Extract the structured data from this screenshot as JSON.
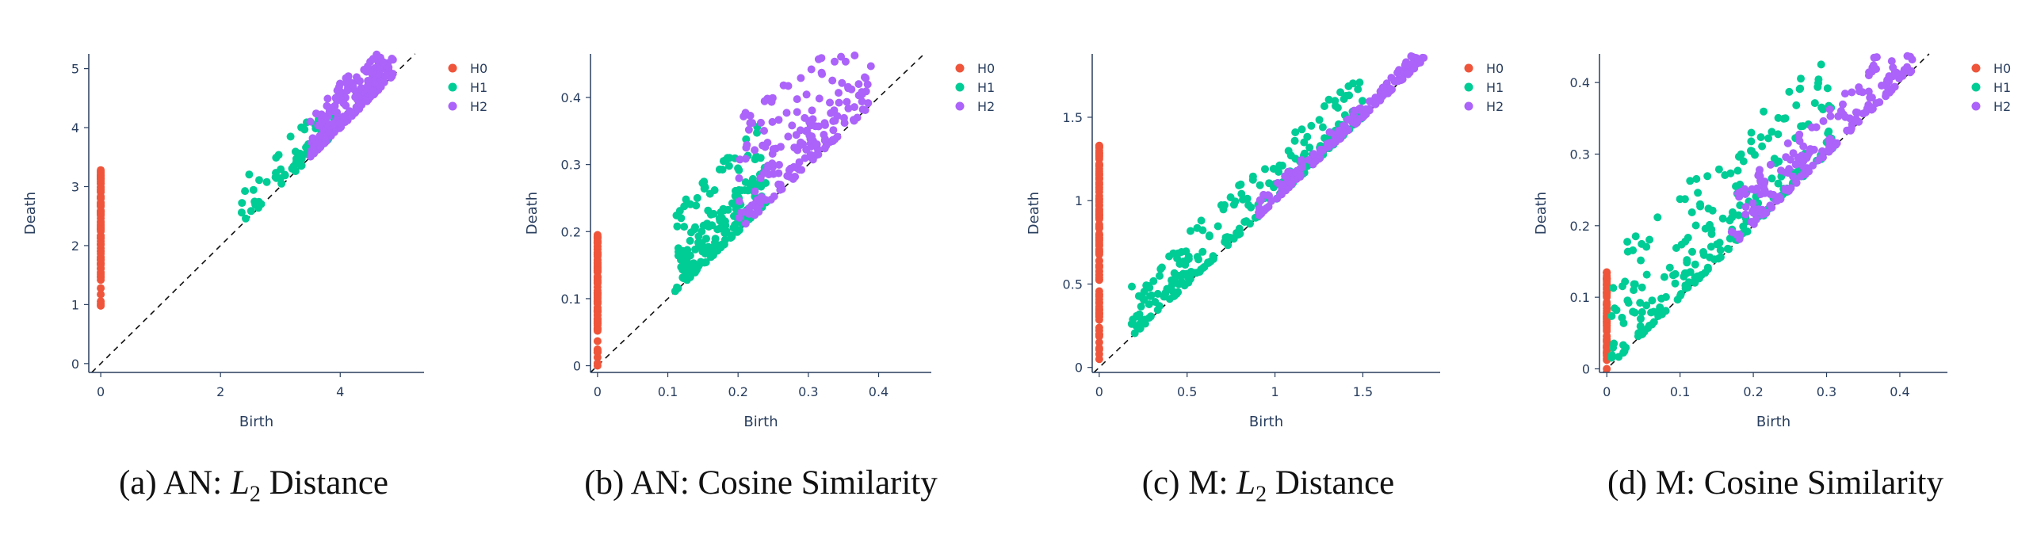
{
  "chart_data": [
    {
      "type": "scatter",
      "caption_prefix": "(a) AN: ",
      "caption_var": "L",
      "caption_sub": "2",
      "caption_suffix": " Distance",
      "xlabel": "Birth",
      "ylabel": "Death",
      "xlim": [
        -0.2,
        5.4
      ],
      "ylim": [
        -0.15,
        5.25
      ],
      "xticks": [
        0,
        2,
        4
      ],
      "xtick_labels": [
        "0",
        "2",
        "4"
      ],
      "yticks": [
        0,
        1,
        2,
        3,
        4,
        5
      ],
      "ytick_labels": [
        "0",
        "1",
        "2",
        "3",
        "4",
        "5"
      ],
      "diagonal": true,
      "grid": false,
      "legend_position": "top-right",
      "series": [
        {
          "name": "H0",
          "color": "#ef553b",
          "gen": {
            "kind": "column",
            "x": 0,
            "ymin": 0.98,
            "ymax": 3.28,
            "n": 95
          }
        },
        {
          "name": "H1",
          "color": "#00cc96",
          "gen": {
            "kind": "band",
            "xmin": 2.35,
            "xmax": 3.95,
            "offmax": 0.75,
            "n": 70
          }
        },
        {
          "name": "H2",
          "color": "#ab63fa",
          "gen": {
            "kind": "band",
            "xmin": 3.5,
            "xmax": 4.9,
            "offmax": 0.75,
            "n": 200
          }
        }
      ]
    },
    {
      "type": "scatter",
      "caption_prefix": "(b) AN: Cosine Similarity",
      "caption_var": "",
      "caption_sub": "",
      "caption_suffix": "",
      "xlabel": "Birth",
      "ylabel": "Death",
      "xlim": [
        -0.01,
        0.475
      ],
      "ylim": [
        -0.01,
        0.465
      ],
      "xticks": [
        0,
        0.1,
        0.2,
        0.3,
        0.4
      ],
      "xtick_labels": [
        "0",
        "0.1",
        "0.2",
        "0.3",
        "0.4"
      ],
      "yticks": [
        0,
        0.1,
        0.2,
        0.3,
        0.4
      ],
      "ytick_labels": [
        "0",
        "0.1",
        "0.2",
        "0.3",
        "0.4"
      ],
      "diagonal": true,
      "grid": false,
      "legend_position": "top-right",
      "series": [
        {
          "name": "H0",
          "color": "#ef553b",
          "gen": {
            "kind": "column",
            "x": 0,
            "ymin": 0.0,
            "ymax": 0.195,
            "n": 95
          }
        },
        {
          "name": "H1",
          "color": "#00cc96",
          "gen": {
            "kind": "band",
            "xmin": 0.11,
            "xmax": 0.24,
            "offmax": 0.13,
            "n": 190
          }
        },
        {
          "name": "H2",
          "color": "#ab63fa",
          "gen": {
            "kind": "band",
            "xmin": 0.2,
            "xmax": 0.39,
            "offmax": 0.17,
            "n": 190
          }
        }
      ]
    },
    {
      "type": "scatter",
      "caption_prefix": "(c) M: ",
      "caption_var": "L",
      "caption_sub": "2",
      "caption_suffix": " Distance",
      "xlabel": "Birth",
      "ylabel": "Death",
      "xlim": [
        -0.04,
        1.94
      ],
      "ylim": [
        -0.03,
        1.88
      ],
      "xticks": [
        0,
        0.5,
        1,
        1.5
      ],
      "xtick_labels": [
        "0",
        "0.5",
        "1",
        "1.5"
      ],
      "yticks": [
        0,
        0.5,
        1,
        1.5
      ],
      "ytick_labels": [
        "0",
        "0.5",
        "1",
        "1.5"
      ],
      "diagonal": true,
      "grid": false,
      "legend_position": "top-right",
      "series": [
        {
          "name": "H0",
          "color": "#ef553b",
          "gen": {
            "kind": "column",
            "x": 0,
            "ymin": 0.05,
            "ymax": 1.33,
            "n": 110
          }
        },
        {
          "name": "H1",
          "color": "#00cc96",
          "gen": {
            "kind": "band",
            "xmin": 0.18,
            "xmax": 1.5,
            "offmax": 0.3,
            "n": 230
          }
        },
        {
          "name": "H2",
          "color": "#ab63fa",
          "gen": {
            "kind": "band",
            "xmin": 0.9,
            "xmax": 1.85,
            "offmax": 0.1,
            "n": 170
          }
        }
      ]
    },
    {
      "type": "scatter",
      "caption_prefix": "(d) M: Cosine Similarity",
      "caption_var": "",
      "caption_sub": "",
      "caption_suffix": "",
      "xlabel": "Birth",
      "ylabel": "Death",
      "xlim": [
        -0.01,
        0.465
      ],
      "ylim": [
        -0.005,
        0.44
      ],
      "xticks": [
        0,
        0.1,
        0.2,
        0.3,
        0.4
      ],
      "xtick_labels": [
        "0",
        "0.1",
        "0.2",
        "0.3",
        "0.4"
      ],
      "yticks": [
        0,
        0.1,
        0.2,
        0.3,
        0.4
      ],
      "ytick_labels": [
        "0",
        "0.1",
        "0.2",
        "0.3",
        "0.4"
      ],
      "diagonal": true,
      "grid": false,
      "legend_position": "top-right",
      "series": [
        {
          "name": "H0",
          "color": "#ef553b",
          "gen": {
            "kind": "column",
            "x": 0,
            "ymin": 0.0,
            "ymax": 0.135,
            "n": 80
          }
        },
        {
          "name": "H1",
          "color": "#00cc96",
          "gen": {
            "kind": "band",
            "xmin": 0.005,
            "xmax": 0.31,
            "offmax": 0.15,
            "n": 230
          }
        },
        {
          "name": "H2",
          "color": "#ab63fa",
          "gen": {
            "kind": "band",
            "xmin": 0.17,
            "xmax": 0.42,
            "offmax": 0.07,
            "n": 190
          }
        }
      ]
    }
  ]
}
